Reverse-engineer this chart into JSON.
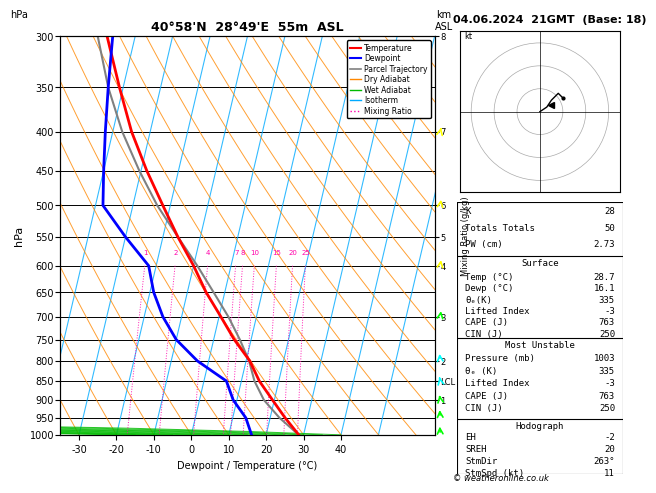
{
  "title_left": "40°58'N  28°49'E  55m  ASL",
  "title_right": "04.06.2024  21GMT  (Base: 18)",
  "xlabel": "Dewpoint / Temperature (°C)",
  "ylabel_left": "hPa",
  "pressure_levels": [
    300,
    350,
    400,
    450,
    500,
    550,
    600,
    650,
    700,
    750,
    800,
    850,
    900,
    950,
    1000
  ],
  "isotherm_color": "#00aaff",
  "dry_adiabat_color": "#ff8800",
  "wet_adiabat_color": "#00bb00",
  "mixing_ratio_color": "#ff00aa",
  "temp_color": "#ff0000",
  "dewpoint_color": "#0000ff",
  "parcel_color": "#808080",
  "mixing_ratio_values": [
    1,
    2,
    4,
    7,
    8,
    10,
    15,
    20,
    25
  ],
  "stats": {
    "K": 28,
    "Totals_Totals": 50,
    "PW_cm": 2.73,
    "Surface": {
      "Temp_C": 28.7,
      "Dewp_C": 16.1,
      "theta_e_K": 335,
      "Lifted_Index": -3,
      "CAPE_J": 763,
      "CIN_J": 250
    },
    "Most_Unstable": {
      "Pressure_mb": 1003,
      "theta_e_K": 335,
      "Lifted_Index": -3,
      "CAPE_J": 763,
      "CIN_J": 250
    },
    "Hodograph": {
      "EH": -2,
      "SREH": 20,
      "StmDir": 263,
      "StmSpd_kt": 11
    }
  },
  "temp_profile": {
    "pressure": [
      1000,
      950,
      900,
      850,
      800,
      750,
      700,
      650,
      600,
      550,
      500,
      450,
      400,
      350,
      300
    ],
    "temperature": [
      28.7,
      24.0,
      19.5,
      14.8,
      11.0,
      5.5,
      0.5,
      -5.0,
      -10.0,
      -16.0,
      -22.0,
      -28.5,
      -35.0,
      -41.0,
      -47.5
    ]
  },
  "dewpoint_profile": {
    "pressure": [
      1000,
      950,
      900,
      850,
      800,
      750,
      700,
      650,
      600,
      550,
      500,
      450,
      400,
      350,
      300
    ],
    "dewpoint": [
      16.1,
      13.5,
      9.0,
      6.0,
      -3.0,
      -10.0,
      -15.0,
      -19.0,
      -22.0,
      -30.0,
      -38.0,
      -40.0,
      -42.0,
      -44.0,
      -46.0
    ]
  },
  "parcel_profile": {
    "pressure": [
      1000,
      950,
      900,
      850,
      800,
      750,
      700,
      650,
      600,
      550,
      500,
      450,
      400,
      350,
      300
    ],
    "temperature": [
      28.7,
      22.5,
      17.2,
      13.5,
      10.8,
      7.0,
      2.5,
      -3.0,
      -9.0,
      -16.0,
      -23.5,
      -30.5,
      -37.5,
      -44.0,
      -50.0
    ]
  },
  "hodograph_winds": {
    "u": [
      0,
      3,
      5,
      8,
      10
    ],
    "v": [
      0,
      2,
      5,
      8,
      6
    ]
  },
  "wind_barbs": {
    "pressure": [
      1000,
      950,
      900,
      850,
      800,
      700,
      600,
      500,
      400,
      300
    ],
    "u": [
      -2,
      -3,
      -5,
      -3,
      -2,
      5,
      8,
      10,
      12,
      15
    ],
    "v": [
      5,
      6,
      4,
      2,
      3,
      5,
      8,
      10,
      8,
      5
    ]
  },
  "footer": "© weatheronline.co.uk"
}
